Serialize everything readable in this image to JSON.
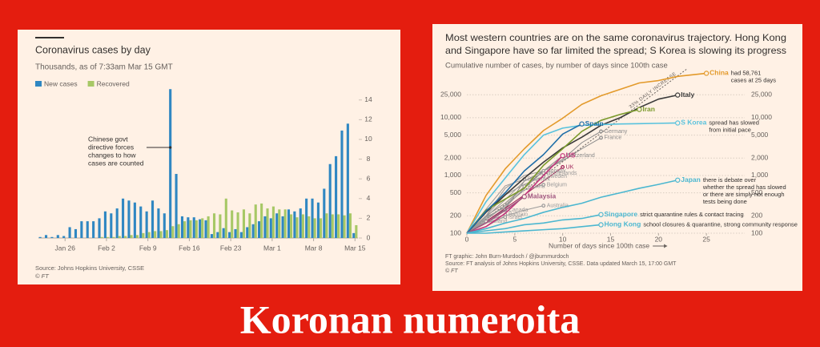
{
  "caption": "Koronan numeroita",
  "chart_data": [
    {
      "type": "bar",
      "title": "Coronavirus cases by day",
      "subtitle": "Thousands, as of 7:33am Mar 15 GMT",
      "categories": [
        null,
        null,
        null,
        null,
        "Jan 26",
        null,
        null,
        null,
        null,
        null,
        null,
        "Feb 2",
        null,
        null,
        null,
        null,
        null,
        null,
        "Feb 9",
        null,
        null,
        null,
        null,
        null,
        null,
        "Feb 16",
        null,
        null,
        null,
        null,
        null,
        null,
        "Feb 23",
        null,
        null,
        null,
        null,
        null,
        null,
        "Mar 1",
        null,
        null,
        null,
        null,
        null,
        null,
        "Mar 8",
        null,
        null,
        null,
        null,
        null,
        null,
        "Mar 15"
      ],
      "series": [
        {
          "name": "New cases",
          "color": "#2f87c2",
          "values": [
            0.1,
            0.3,
            0.1,
            0.3,
            0.2,
            1.1,
            0.9,
            1.7,
            1.7,
            1.7,
            2.0,
            2.7,
            2.5,
            3.0,
            4.0,
            3.8,
            3.6,
            3.2,
            2.7,
            3.8,
            3.0,
            2.5,
            15.1,
            6.5,
            2.2,
            2.1,
            2.1,
            1.9,
            1.8,
            0.4,
            0.6,
            1.0,
            0.6,
            0.9,
            0.6,
            1.1,
            1.4,
            1.7,
            2.2,
            2.0,
            2.5,
            2.2,
            2.9,
            2.7,
            3.0,
            4.0,
            4.0,
            3.6,
            5.0,
            7.5,
            8.3,
            10.9,
            11.6,
            0.5
          ]
        },
        {
          "name": "Recovered",
          "color": "#a7c866",
          "values": [
            0,
            0,
            0,
            0,
            0,
            0,
            0,
            0,
            0,
            0,
            0.1,
            0.1,
            0.1,
            0.2,
            0.2,
            0.3,
            0.3,
            0.5,
            0.6,
            0.7,
            0.7,
            0.8,
            1.2,
            1.4,
            1.7,
            1.8,
            1.8,
            2.0,
            2.2,
            2.5,
            2.4,
            4.0,
            2.8,
            2.6,
            2.9,
            2.5,
            3.4,
            3.5,
            3.0,
            3.2,
            2.9,
            2.9,
            2.4,
            2.1,
            2.4,
            2.2,
            2.0,
            2.0,
            2.5,
            2.4,
            2.4,
            2.3,
            2.5,
            1.3
          ]
        }
      ],
      "ylim": [
        0,
        15.2
      ],
      "yticks": [
        0,
        2,
        4,
        6,
        8,
        10,
        12,
        14
      ],
      "annotation": [
        "Chinese govt",
        "directive forces",
        "changes to how",
        "cases are counted"
      ],
      "source": "Source: Johns Hopkins University, CSSE",
      "credit": "© FT"
    },
    {
      "type": "line",
      "title": [
        "Most western countries are on the same coronavirus trajectory. Hong Kong",
        "and Singapore have so far limited the spread; S Korea is slowing its progress"
      ],
      "subtitle": "Cumulative number of cases, by number of days since 100th case",
      "x_label": "Number of days since 100th case",
      "x": [
        0,
        2,
        4,
        6,
        8,
        10,
        12,
        14,
        16,
        18,
        20,
        22,
        25
      ],
      "xlim": [
        0,
        29
      ],
      "xticks": [
        0,
        5,
        10,
        15,
        20,
        25
      ],
      "log_y": true,
      "ylim": [
        100,
        70000
      ],
      "yticks": [
        100,
        200,
        500,
        {
          "value": 1000,
          "label": "1,000"
        },
        {
          "value": 2000,
          "label": "2,000"
        },
        {
          "value": 5000,
          "label": "5,000"
        },
        {
          "value": 10000,
          "label": "10,000"
        },
        {
          "value": 25000,
          "label": "25,000"
        }
      ],
      "grid": true,
      "reference_line": {
        "label": "33% DAILY INCREASE",
        "daily_increase": 33
      },
      "series": [
        {
          "name": "China",
          "color": "#e39a2b",
          "values": [
            100,
            450,
            1300,
            2900,
            6000,
            9800,
            17000,
            24000,
            31000,
            40000,
            44000,
            52000,
            58761
          ],
          "note": [
            "had 58,761",
            "cases at 25 days"
          ]
        },
        {
          "name": "Italy",
          "color": "#3a3a3a",
          "values": [
            100,
            230,
            460,
            900,
            1700,
            3000,
            4600,
            7400,
            10000,
            15000,
            21000,
            24700,
            null
          ]
        },
        {
          "name": "Iran",
          "color": "#7b9a2c",
          "values": [
            100,
            250,
            390,
            600,
            1500,
            2900,
            5800,
            9000,
            11400,
            13900,
            null,
            null,
            null
          ]
        },
        {
          "name": "S Korea",
          "color": "#58c2dd",
          "values": [
            100,
            350,
            900,
            2300,
            5000,
            6600,
            7400,
            7600,
            7800,
            7900,
            8000,
            8100,
            null
          ],
          "note": [
            "spread has slowed",
            "from initial pace"
          ]
        },
        {
          "name": "Spain",
          "color": "#1f6ea8",
          "values": [
            100,
            240,
            500,
            1200,
            2300,
            5200,
            7800,
            null,
            null,
            null,
            null,
            null,
            null
          ]
        },
        {
          "name": "Germany",
          "color": "#8a8a8a",
          "values": [
            100,
            160,
            260,
            800,
            1200,
            1900,
            3700,
            5800,
            null,
            null,
            null,
            null,
            null
          ]
        },
        {
          "name": "France",
          "color": "#8a8a8a",
          "values": [
            100,
            190,
            280,
            600,
            1200,
            1800,
            2900,
            4500,
            null,
            null,
            null,
            null,
            null
          ]
        },
        {
          "name": "US",
          "color": "#c2357c",
          "values": [
            100,
            130,
            220,
            450,
            1000,
            2200,
            null,
            null,
            null,
            null,
            null,
            null,
            null
          ]
        },
        {
          "name": "Switzerland",
          "color": "#8a8a8a",
          "values": [
            100,
            200,
            330,
            640,
            1200,
            2200,
            null,
            null,
            null,
            null,
            null,
            null,
            null
          ]
        },
        {
          "name": "UK",
          "color": "#9b1c52",
          "values": [
            100,
            160,
            270,
            460,
            800,
            1400,
            null,
            null,
            null,
            null,
            null,
            null,
            null
          ]
        },
        {
          "name": "Norway",
          "color": "#9a9a9a",
          "values": [
            100,
            200,
            600,
            1000,
            1200,
            null,
            null,
            null,
            null,
            null,
            null,
            null,
            null
          ]
        },
        {
          "name": "Netherlands",
          "color": "#9a9a9a",
          "values": [
            100,
            190,
            380,
            800,
            1100,
            null,
            null,
            null,
            null,
            null,
            null,
            null,
            null
          ]
        },
        {
          "name": "Denmark",
          "color": "#9a9a9a",
          "values": [
            100,
            260,
            660,
            860,
            null,
            null,
            null,
            null,
            null,
            null,
            null,
            null,
            null
          ]
        },
        {
          "name": "Sweden",
          "color": "#9a9a9a",
          "values": [
            100,
            200,
            460,
            700,
            960,
            null,
            null,
            null,
            null,
            null,
            null,
            null,
            null
          ]
        },
        {
          "name": "Austria",
          "color": "#9a9a9a",
          "values": [
            100,
            180,
            300,
            650,
            null,
            null,
            null,
            null,
            null,
            null,
            null,
            null,
            null
          ]
        },
        {
          "name": "Belgium",
          "color": "#9a9a9a",
          "values": [
            100,
            170,
            300,
            560,
            690,
            null,
            null,
            null,
            null,
            null,
            null,
            null,
            null
          ]
        },
        {
          "name": "Malaysia",
          "color": "#a0577f",
          "values": [
            100,
            150,
            250,
            430,
            null,
            null,
            null,
            null,
            null,
            null,
            null,
            null,
            null
          ]
        },
        {
          "name": "Australia",
          "color": "#9a9a9a",
          "values": [
            100,
            130,
            200,
            250,
            300,
            null,
            null,
            null,
            null,
            null,
            null,
            null,
            null
          ]
        },
        {
          "name": "Canada",
          "color": "#9a9a9a",
          "values": [
            100,
            150,
            250,
            null,
            null,
            null,
            null,
            null,
            null,
            null,
            null,
            null,
            null
          ]
        },
        {
          "name": "Bahrain",
          "color": "#9a9a9a",
          "values": [
            100,
            160,
            210,
            null,
            null,
            null,
            null,
            null,
            null,
            null,
            null,
            null,
            null
          ]
        },
        {
          "name": "Israel",
          "color": "#9a9a9a",
          "values": [
            100,
            150,
            190,
            null,
            null,
            null,
            null,
            null,
            null,
            null,
            null,
            null,
            null
          ]
        },
        {
          "name": "Iceland",
          "color": "#9a9a9a",
          "values": [
            100,
            160,
            null,
            null,
            null,
            null,
            null,
            null,
            null,
            null,
            null,
            null,
            null
          ]
        },
        {
          "name": "Japan",
          "color": "#4bb7d0",
          "values": [
            100,
            120,
            150,
            180,
            230,
            280,
            330,
            420,
            500,
            600,
            700,
            830,
            null
          ],
          "note": [
            "there is debate over",
            "whether the spread has slowed",
            "or there are simply not enough",
            "tests being done"
          ]
        },
        {
          "name": "Singapore",
          "color": "#4bb7d0",
          "values": [
            100,
            110,
            120,
            140,
            150,
            170,
            180,
            210,
            null,
            null,
            null,
            null,
            null
          ],
          "note": [
            "strict quarantine rules & contact tracing"
          ]
        },
        {
          "name": "Hong Kong",
          "color": "#4bb7d0",
          "values": [
            100,
            100,
            105,
            110,
            115,
            120,
            130,
            140,
            null,
            null,
            null,
            null,
            null
          ],
          "note": [
            "school closures & quarantine, strong community response"
          ]
        }
      ],
      "source": [
        "FT graphic: John Burn-Murdoch / @jburnmurdoch",
        "Source: FT analysis of Johns Hopkins University, CSSE. Data updated March 15, 17:00 GMT"
      ],
      "credit": "© FT"
    }
  ]
}
